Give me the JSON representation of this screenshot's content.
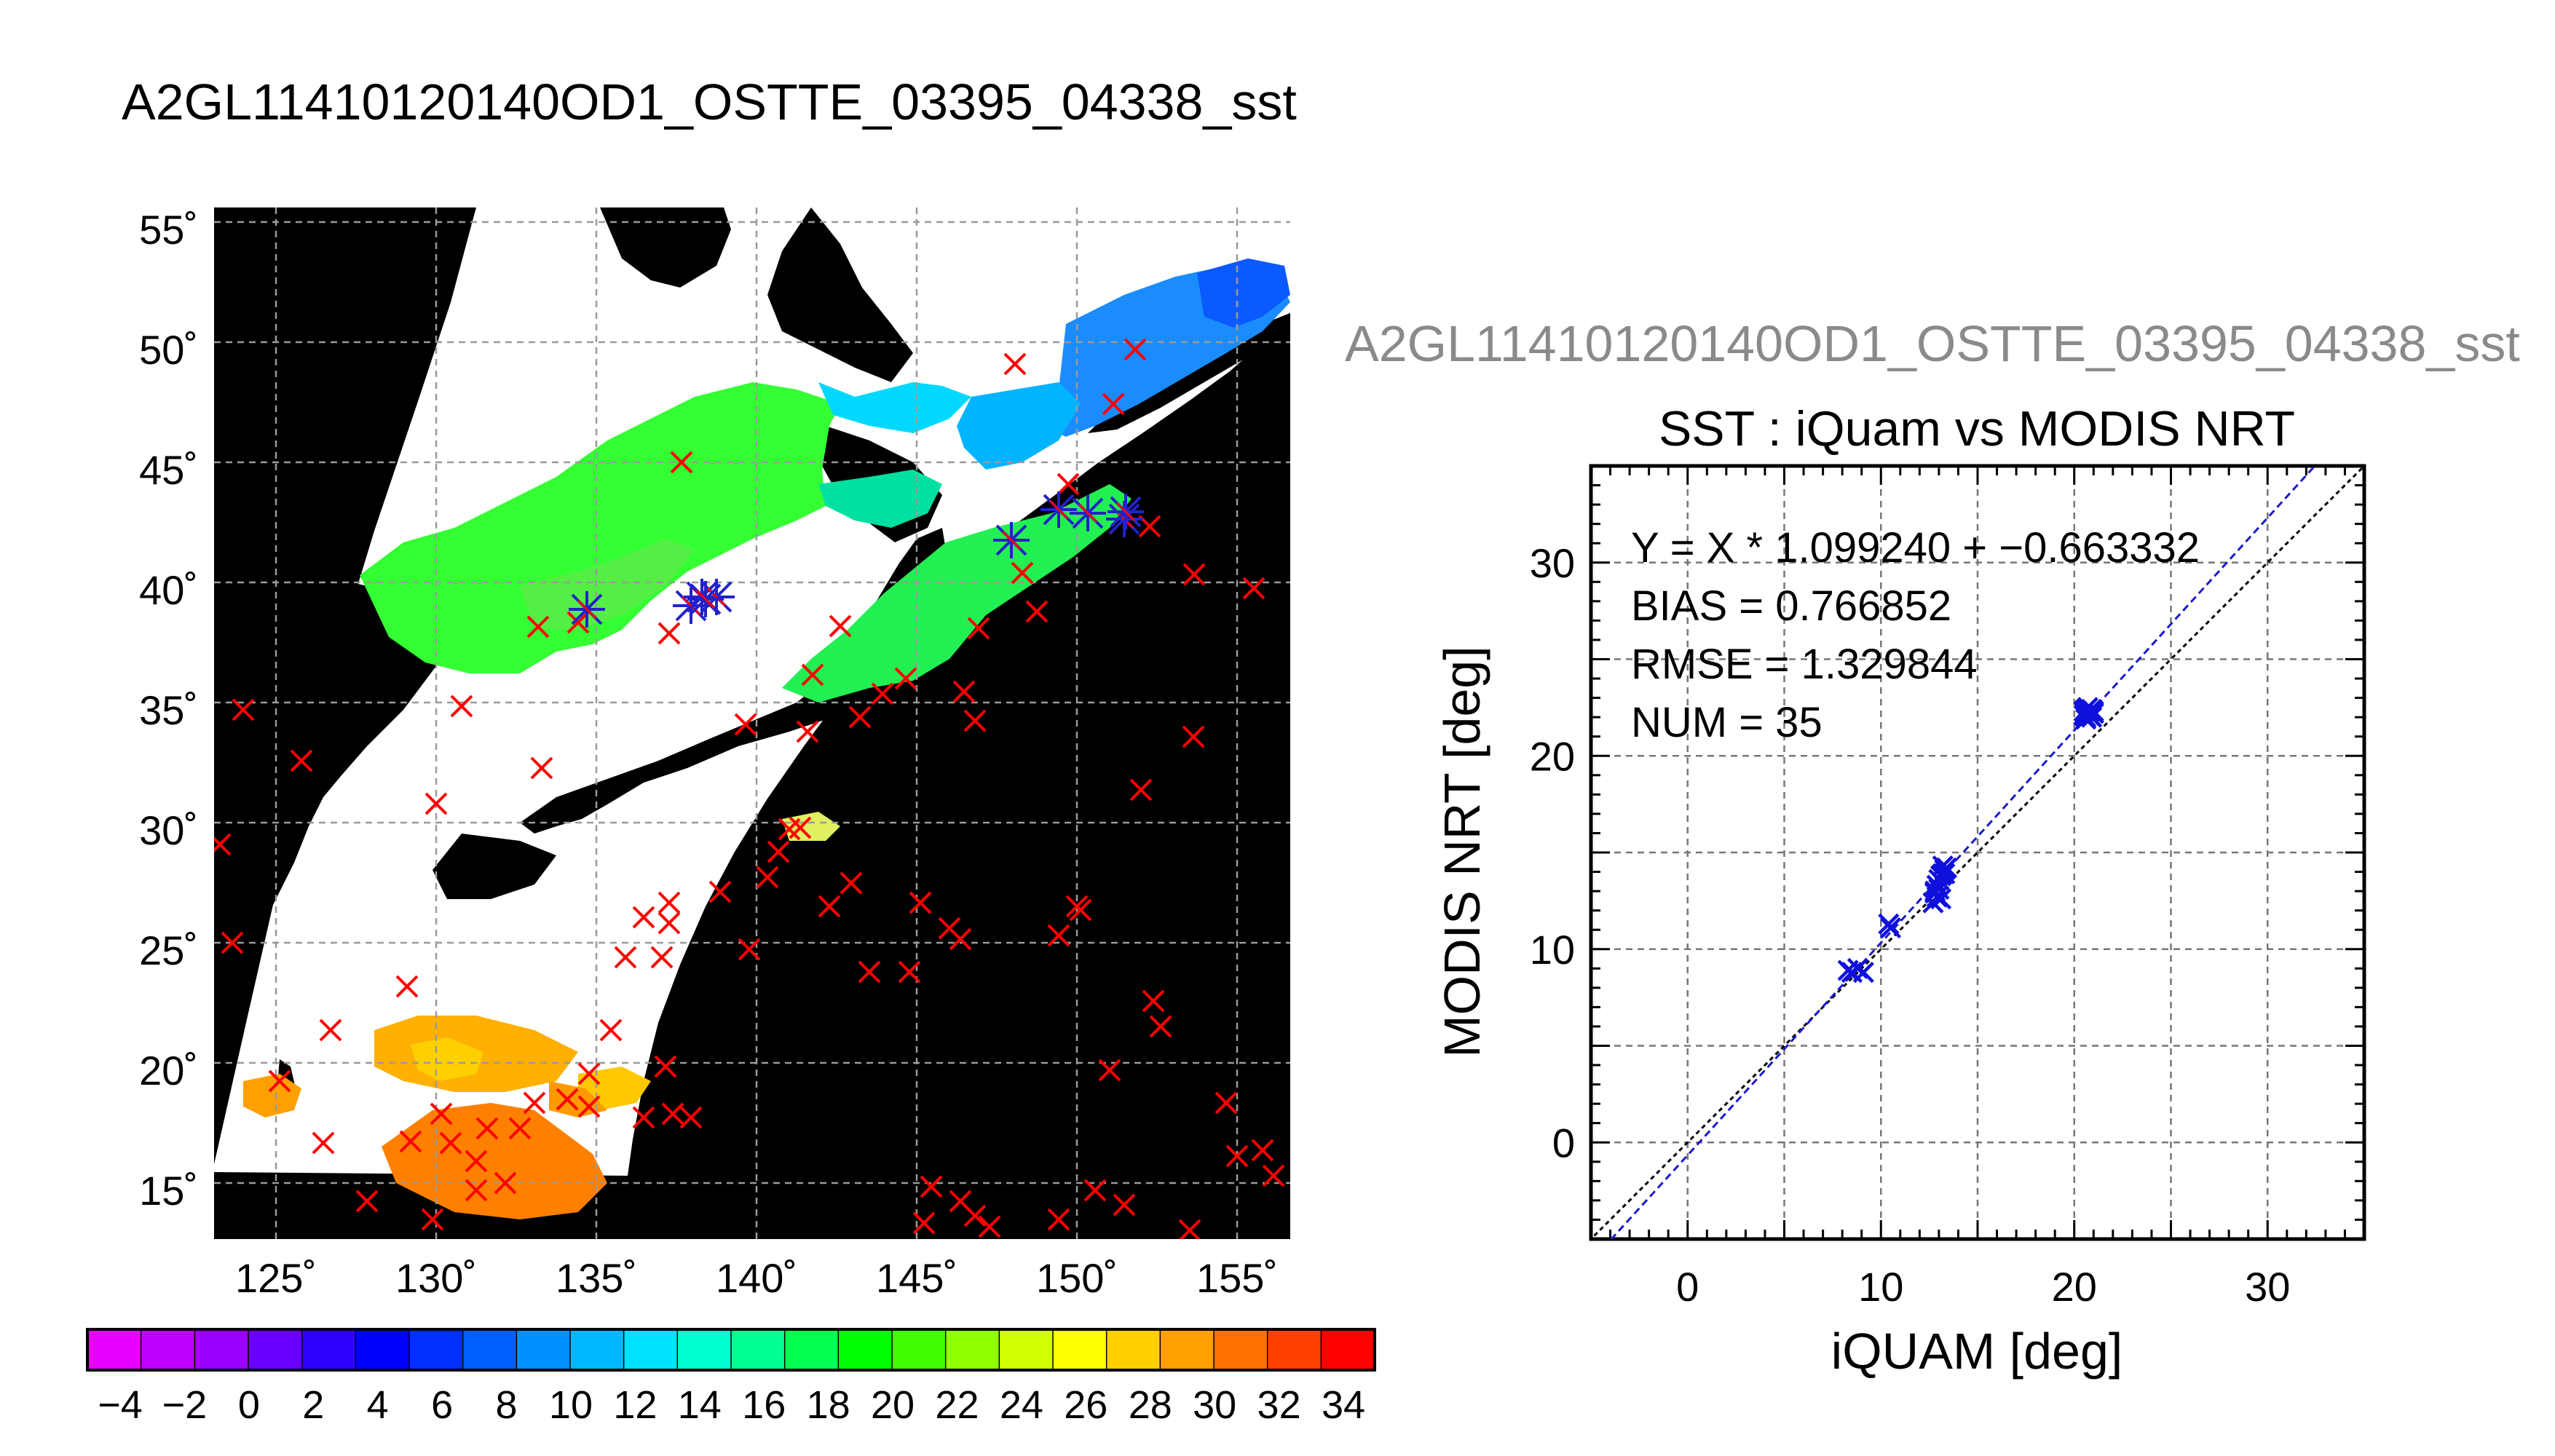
{
  "main_title": "A2GL11410120140OD1_OSTTE_03395_04338_sst",
  "scatter_heading": "A2GL11410120140OD1_OSTTE_03395_04338_sst",
  "colors": {
    "land": "#000000",
    "no_data": "#ffffff",
    "match_point": "#ff0000",
    "matched_in_swath": "#2222cc",
    "regression_line": "#1a1acc",
    "one_to_one_line": "#000000"
  },
  "map": {
    "lat_ticks": [
      "55˚",
      "50˚",
      "45˚",
      "40˚",
      "35˚",
      "30˚",
      "25˚",
      "20˚",
      "15˚"
    ],
    "lon_ticks": [
      "125˚",
      "130˚",
      "135˚",
      "140˚",
      "145˚",
      "150˚",
      "155˚"
    ],
    "colorbar": {
      "labels": [
        "−4",
        "−2",
        "0",
        "2",
        "4",
        "6",
        "8",
        "10",
        "12",
        "14",
        "16",
        "18",
        "20",
        "22",
        "24",
        "26",
        "28",
        "30",
        "32",
        "34"
      ],
      "colors": [
        "#e600ff",
        "#c000ff",
        "#9a00ff",
        "#6a00ff",
        "#3000ff",
        "#0000ff",
        "#0030ff",
        "#0060ff",
        "#0090ff",
        "#00b8ff",
        "#00e0ff",
        "#00ffd0",
        "#00ff90",
        "#00ff50",
        "#00ff00",
        "#40ff00",
        "#90ff00",
        "#d0ff00",
        "#ffff00",
        "#ffd000",
        "#ffa000",
        "#ff7000",
        "#ff4000",
        "#ff0000"
      ]
    }
  },
  "chart_data": {
    "type": "scatter",
    "title": "SST : iQuam vs MODIS NRT",
    "xlabel": "iQUAM [deg]",
    "ylabel": "MODIS NRT [deg]",
    "xlim": [
      -5,
      35
    ],
    "ylim": [
      -5,
      35
    ],
    "xticks": [
      0,
      10,
      20,
      30
    ],
    "yticks": [
      0,
      10,
      20,
      30
    ],
    "grid": true,
    "legend": "none",
    "annotations": [
      "Y = X * 1.099240 + −0.663332",
      "BIAS = 0.766852",
      "RMSE = 1.329844",
      "NUM = 35"
    ],
    "regression": {
      "slope": 1.09924,
      "intercept": -0.663332
    },
    "reference_line": {
      "slope": 1,
      "intercept": 0
    },
    "points": [
      [
        8.3,
        8.9
      ],
      [
        8.5,
        8.8
      ],
      [
        8.8,
        9.0
      ],
      [
        9.1,
        8.8
      ],
      [
        10.4,
        11.3
      ],
      [
        10.5,
        11.1
      ],
      [
        12.7,
        12.4
      ],
      [
        12.8,
        12.9
      ],
      [
        12.9,
        13.3
      ],
      [
        13.0,
        13.6
      ],
      [
        13.1,
        12.6
      ],
      [
        13.2,
        13.9
      ],
      [
        13.3,
        14.1
      ],
      [
        13.4,
        14.2
      ],
      [
        13.1,
        13.8
      ],
      [
        12.9,
        12.7
      ],
      [
        13.0,
        13.1
      ],
      [
        13.2,
        14.3
      ],
      [
        13.3,
        13.9
      ],
      [
        12.8,
        13.0
      ],
      [
        20.5,
        22.1
      ],
      [
        20.6,
        22.4
      ],
      [
        20.7,
        22.2
      ],
      [
        20.8,
        22.3
      ],
      [
        20.9,
        22.0
      ],
      [
        21.0,
        22.3
      ],
      [
        20.6,
        21.9
      ],
      [
        20.7,
        22.5
      ],
      [
        20.8,
        22.1
      ],
      [
        20.9,
        22.4
      ],
      [
        21.0,
        22.2
      ],
      [
        20.5,
        22.3
      ],
      [
        20.6,
        22.0
      ],
      [
        20.8,
        22.3
      ],
      [
        20.7,
        22.2
      ]
    ]
  }
}
